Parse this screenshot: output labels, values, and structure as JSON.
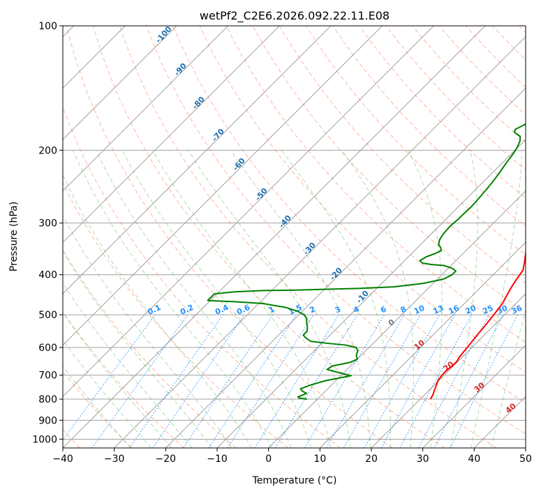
{
  "chart_data": {
    "type": "line",
    "title": "wetPf2_C2E6.2026.092.22.11.E08",
    "xlabel": "Temperature (°C)",
    "ylabel": "Pressure (hPa)",
    "xlim": [
      -40,
      50
    ],
    "ylim": [
      1050,
      100
    ],
    "y_scale": "log",
    "grid": true,
    "x_ticks": [
      -40,
      -30,
      -20,
      -10,
      0,
      10,
      20,
      30,
      40,
      50
    ],
    "y_ticks": [
      100,
      200,
      300,
      400,
      500,
      600,
      700,
      800,
      900,
      1000
    ],
    "skew": true,
    "series": [
      {
        "color": "#ff0000",
        "points": [
          [
            22.0,
            800
          ],
          [
            21.6,
            780
          ],
          [
            21.0,
            760
          ],
          [
            20.4,
            740
          ],
          [
            19.8,
            720
          ],
          [
            19.6,
            700
          ],
          [
            19.5,
            680
          ],
          [
            19.8,
            665
          ],
          [
            19.8,
            650
          ],
          [
            19.4,
            630
          ],
          [
            19.1,
            600
          ],
          [
            18.6,
            560
          ],
          [
            18.3,
            530
          ],
          [
            17.9,
            500
          ],
          [
            17.4,
            470
          ],
          [
            16.7,
            450
          ],
          [
            16.0,
            430
          ],
          [
            15.4,
            410
          ],
          [
            14.9,
            390
          ],
          [
            13.4,
            370
          ],
          [
            11.7,
            350
          ],
          [
            9.9,
            330
          ],
          [
            7.9,
            310
          ],
          [
            5.8,
            290
          ],
          [
            3.6,
            270
          ],
          [
            1.3,
            250
          ],
          [
            -1.1,
            230
          ],
          [
            -3.3,
            213
          ],
          [
            -5.0,
            200
          ],
          [
            -6.2,
            190
          ],
          [
            -7.0,
            182
          ],
          [
            -7.7,
            172
          ],
          [
            -8.3,
            163
          ],
          [
            -8.8,
            155
          ],
          [
            -9.4,
            147
          ],
          [
            -9.8,
            140
          ],
          [
            -10.0,
            133
          ],
          [
            -10.0,
            127
          ],
          [
            -9.8,
            122
          ],
          [
            -9.6,
            118
          ],
          [
            -9.2,
            114
          ],
          [
            -9.0,
            110
          ],
          [
            -9.0,
            106
          ],
          [
            -9.0,
            103
          ],
          [
            -8.7,
            100
          ]
        ]
      },
      {
        "color": "#008000",
        "points": [
          [
            -2.0,
            800
          ],
          [
            -3.8,
            795
          ],
          [
            -4.2,
            790
          ],
          [
            -3.2,
            775
          ],
          [
            -4.5,
            765
          ],
          [
            -5.3,
            755
          ],
          [
            -4.1,
            740
          ],
          [
            -2.0,
            722
          ],
          [
            2.0,
            702
          ],
          [
            -1.0,
            690
          ],
          [
            -3.9,
            678
          ],
          [
            -3.5,
            665
          ],
          [
            -0.8,
            652
          ],
          [
            0.0,
            640
          ],
          [
            -1.0,
            626
          ],
          [
            -1.5,
            612
          ],
          [
            -2.5,
            600
          ],
          [
            -5.0,
            592
          ],
          [
            -9.0,
            586
          ],
          [
            -12.5,
            580
          ],
          [
            -14.0,
            570
          ],
          [
            -15.2,
            560
          ],
          [
            -15.2,
            548
          ],
          [
            -16.0,
            535
          ],
          [
            -17.0,
            522
          ],
          [
            -17.8,
            510
          ],
          [
            -19.0,
            500
          ],
          [
            -21.0,
            490
          ],
          [
            -24.0,
            480
          ],
          [
            -29.0,
            470
          ],
          [
            -35.0,
            465
          ],
          [
            -40.5,
            462
          ],
          [
            -40.5,
            445
          ],
          [
            -37.0,
            440
          ],
          [
            -32.0,
            437
          ],
          [
            -26.0,
            436
          ],
          [
            -20.0,
            434
          ],
          [
            -14.0,
            432
          ],
          [
            -7.0,
            428
          ],
          [
            -2.0,
            420
          ],
          [
            1.2,
            410
          ],
          [
            2.0,
            400
          ],
          [
            2.0,
            392
          ],
          [
            0.8,
            386
          ],
          [
            -1.4,
            380
          ],
          [
            -4.0,
            378
          ],
          [
            -6.0,
            375
          ],
          [
            -7.0,
            370
          ],
          [
            -6.5,
            362
          ],
          [
            -5.5,
            356
          ],
          [
            -4.8,
            350
          ],
          [
            -5.5,
            344
          ],
          [
            -6.5,
            338
          ],
          [
            -7.2,
            330
          ],
          [
            -7.6,
            320
          ],
          [
            -7.8,
            310
          ],
          [
            -7.8,
            302
          ],
          [
            -7.6,
            293
          ],
          [
            -7.6,
            285
          ],
          [
            -7.5,
            275
          ],
          [
            -7.6,
            265
          ],
          [
            -7.8,
            255
          ],
          [
            -8.0,
            245
          ],
          [
            -8.3,
            235
          ],
          [
            -8.7,
            225
          ],
          [
            -9.2,
            215
          ],
          [
            -9.6,
            205
          ],
          [
            -10.1,
            197
          ],
          [
            -10.8,
            190
          ],
          [
            -11.7,
            185
          ],
          [
            -13.6,
            181
          ],
          [
            -14.0,
            178
          ],
          [
            -13.2,
            174
          ],
          [
            -12.6,
            169
          ],
          [
            -12.4,
            164
          ],
          [
            -12.8,
            157
          ],
          [
            -13.3,
            150
          ],
          [
            -13.5,
            143
          ],
          [
            -13.5,
            136
          ],
          [
            -13.4,
            130
          ],
          [
            -13.4,
            125
          ],
          [
            -13.7,
            121
          ],
          [
            -14.2,
            118
          ],
          [
            -15.1,
            115
          ],
          [
            -15.7,
            113
          ],
          [
            -15.8,
            110
          ],
          [
            -15.5,
            106
          ],
          [
            -15.0,
            103
          ],
          [
            -14.6,
            100
          ]
        ]
      }
    ],
    "dry_adiabat_labels": [
      "-100",
      "-90",
      "-80",
      "-70",
      "-60",
      "-50",
      "-40",
      "-30",
      "-20",
      "-10"
    ],
    "mixing_ratio_labels": [
      "0.1",
      "0.2",
      "0.4",
      "0.6",
      "1",
      "1.5",
      "2",
      "3",
      "4",
      "6",
      "8",
      "10",
      "13",
      "16",
      "20",
      "25",
      "30",
      "36"
    ],
    "moist_adiabat_labels": [
      "0",
      "10",
      "20",
      "30",
      "40"
    ],
    "colors": {
      "isotherm": "#a0a0a0",
      "dry_adiabat": "#ff6e40",
      "moist_adiabat": "#4caf50",
      "mixing_ratio": "#1e90ff",
      "temperature": "#ff0000",
      "dewpoint": "#008000"
    }
  }
}
